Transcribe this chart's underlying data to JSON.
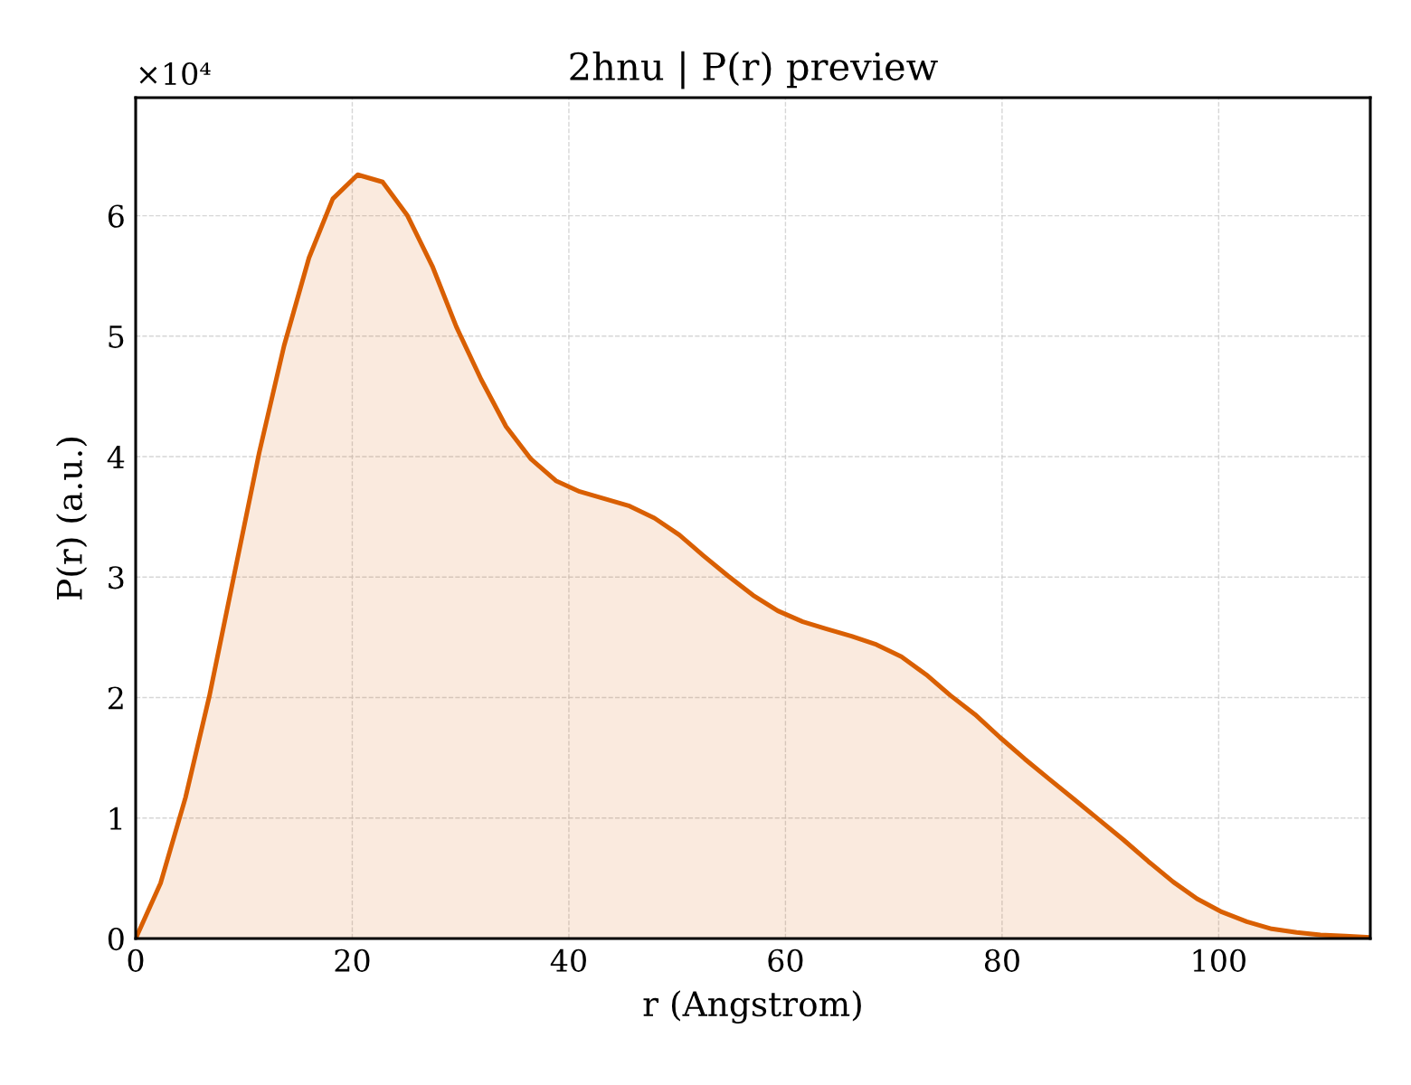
{
  "chart_data": {
    "type": "area",
    "title": "2hnu | P(r) preview",
    "xlabel": "r (Angstrom)",
    "ylabel": "P(r) (a.u.)",
    "annotations": [
      "×10⁴"
    ],
    "x": [
      0,
      2.3,
      4.6,
      6.8,
      9.1,
      11.4,
      13.7,
      16.0,
      18.2,
      20.5,
      22.8,
      25.1,
      27.4,
      29.6,
      31.9,
      34.2,
      36.5,
      38.8,
      41.0,
      43.3,
      45.6,
      47.9,
      50.2,
      52.4,
      54.7,
      57.0,
      59.3,
      61.6,
      63.8,
      66.1,
      68.4,
      70.7,
      73.0,
      75.2,
      77.5,
      79.8,
      82.1,
      84.4,
      86.6,
      88.9,
      91.2,
      93.5,
      95.8,
      98.0,
      100.3,
      102.6,
      104.9,
      107.2,
      109.4,
      111.7,
      114.0
    ],
    "series": [
      {
        "color": "#d95f02",
        "values": [
          0,
          0.46,
          1.17,
          2.01,
          3.02,
          4.03,
          4.92,
          5.65,
          6.14,
          6.34,
          6.28,
          6.0,
          5.58,
          5.08,
          4.64,
          4.25,
          3.98,
          3.8,
          3.71,
          3.65,
          3.59,
          3.49,
          3.35,
          3.18,
          3.01,
          2.85,
          2.72,
          2.63,
          2.57,
          2.51,
          2.44,
          2.34,
          2.19,
          2.02,
          1.86,
          1.67,
          1.49,
          1.32,
          1.16,
          0.99,
          0.82,
          0.64,
          0.47,
          0.33,
          0.22,
          0.14,
          0.08,
          0.05,
          0.03,
          0.02,
          0.01
        ]
      }
    ],
    "xlim": [
      0,
      114
    ],
    "ylim": [
      0,
      6.98
    ],
    "xticks": [
      0,
      20,
      40,
      60,
      80,
      100
    ],
    "yticks": [
      0,
      1,
      2,
      3,
      4,
      5,
      6
    ],
    "grid": true
  }
}
